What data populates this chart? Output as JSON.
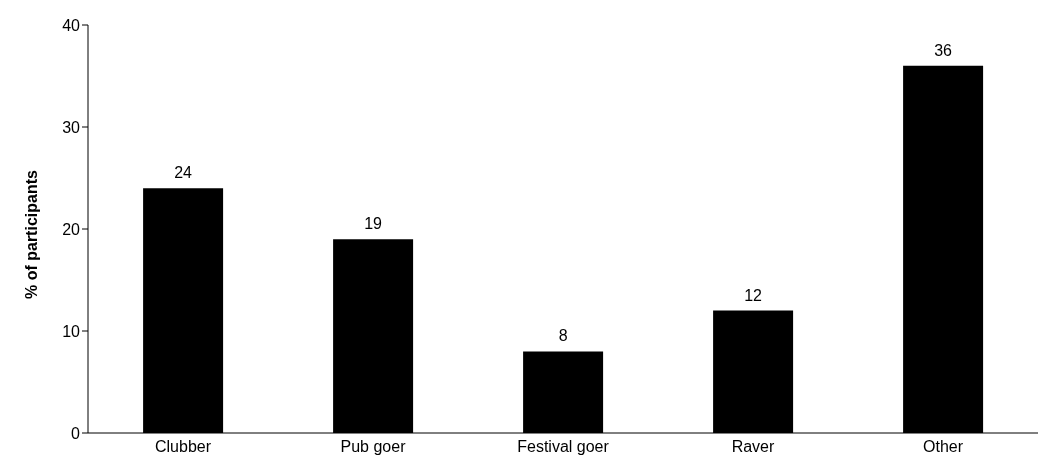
{
  "chart_data": {
    "type": "bar",
    "ylabel": "% of participants",
    "categories": [
      "Clubber",
      "Pub goer",
      "Festival goer",
      "Raver",
      "Other"
    ],
    "values": [
      24,
      19,
      8,
      12,
      36
    ],
    "color": "#000000",
    "ylim": [
      0,
      40
    ],
    "yticks": [
      0,
      10,
      20,
      30,
      40
    ],
    "grid": false,
    "data_labels": true,
    "legend": false
  }
}
